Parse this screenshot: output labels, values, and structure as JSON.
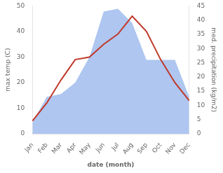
{
  "chart_data": {
    "type": "line",
    "categories": [
      "Jan",
      "Feb",
      "Mar",
      "Apr",
      "May",
      "Jun",
      "Jul",
      "Aug",
      "Sep",
      "Oct",
      "Nov",
      "Dec"
    ],
    "series": [
      {
        "type": "area",
        "color": "#aec6f0",
        "axis": "y2",
        "values": [
          4,
          13,
          14,
          18,
          27,
          43,
          44,
          39,
          26,
          26,
          26,
          13
        ]
      },
      {
        "type": "line",
        "color": "#c0392b",
        "values": [
          5,
          12,
          21,
          29,
          30,
          35,
          39,
          46,
          40,
          29,
          20,
          13
        ]
      }
    ],
    "xlabel": "date (month)",
    "ylabel": "max temp (C)",
    "y2label": "med. precipitation (kg/m2)",
    "ylim": [
      0,
      50
    ],
    "yticks": [
      0,
      10,
      20,
      30,
      40,
      50
    ],
    "y2lim": [
      0,
      45
    ],
    "y2ticks": [
      0,
      5,
      10,
      15,
      20,
      25,
      30,
      35,
      40,
      45
    ],
    "grid": false
  }
}
